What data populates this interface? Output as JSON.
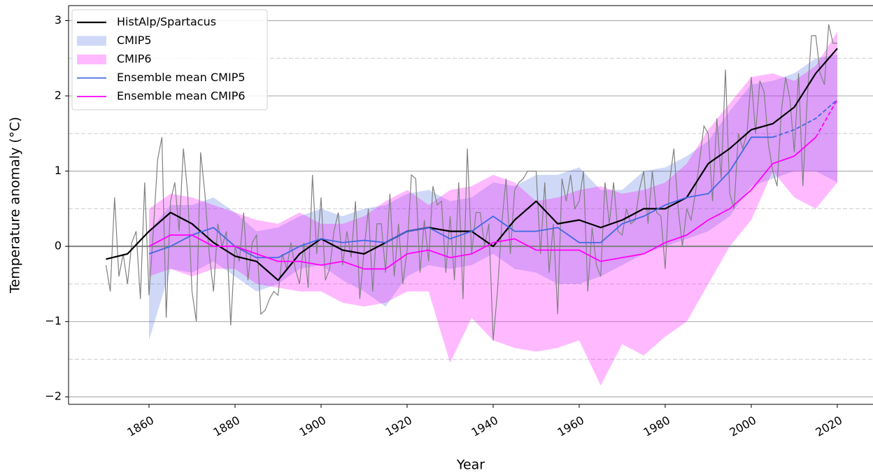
{
  "chart_data": {
    "type": "line",
    "x_label": "Year",
    "y_label": "Temperature anomaly (°C)",
    "xlim": [
      1841.3,
      2028.3
    ],
    "ylim": [
      -2.1,
      3.2
    ],
    "xticks": [
      1860,
      1880,
      1900,
      1920,
      1940,
      1960,
      1980,
      2000,
      2020
    ],
    "yticks": [
      {
        "value": -2,
        "label": "−2"
      },
      {
        "value": -1,
        "label": "−1"
      },
      0,
      1,
      2,
      3
    ],
    "minor_yticks": [
      -1.5,
      -0.5,
      0.5,
      1.5,
      2.5
    ],
    "grid": true,
    "zero_line": true,
    "legend": "upper left",
    "annual": {
      "color": "#808080",
      "x": [
        1850,
        1851,
        1852,
        1853,
        1854,
        1855,
        1856,
        1857,
        1858,
        1859,
        1860,
        1861,
        1862,
        1863,
        1864,
        1865,
        1866,
        1867,
        1868,
        1869,
        1870,
        1871,
        1872,
        1873,
        1874,
        1875,
        1876,
        1877,
        1878,
        1879,
        1880,
        1881,
        1882,
        1883,
        1884,
        1885,
        1886,
        1887,
        1888,
        1889,
        1890,
        1891,
        1892,
        1893,
        1894,
        1895,
        1896,
        1897,
        1898,
        1899,
        1900,
        1901,
        1902,
        1903,
        1904,
        1905,
        1906,
        1907,
        1908,
        1909,
        1910,
        1911,
        1912,
        1913,
        1914,
        1915,
        1916,
        1917,
        1918,
        1919,
        1920,
        1921,
        1922,
        1923,
        1924,
        1925,
        1926,
        1927,
        1928,
        1929,
        1930,
        1931,
        1932,
        1933,
        1934,
        1935,
        1936,
        1937,
        1938,
        1939,
        1940,
        1941,
        1942,
        1943,
        1944,
        1945,
        1946,
        1947,
        1948,
        1949,
        1950,
        1951,
        1952,
        1953,
        1954,
        1955,
        1956,
        1957,
        1958,
        1959,
        1960,
        1961,
        1962,
        1963,
        1964,
        1965,
        1966,
        1967,
        1968,
        1969,
        1970,
        1971,
        1972,
        1973,
        1974,
        1975,
        1976,
        1977,
        1978,
        1979,
        1980,
        1981,
        1982,
        1983,
        1984,
        1985,
        1986,
        1987,
        1988,
        1989,
        1990,
        1991,
        1992,
        1993,
        1994,
        1995,
        1996,
        1997,
        1998,
        1999,
        2000,
        2001,
        2002,
        2003,
        2004,
        2005,
        2006,
        2007,
        2008,
        2009,
        2010,
        2011,
        2012,
        2013,
        2014,
        2015,
        2016,
        2017,
        2018,
        2019,
        2020
      ],
      "values": [
        -0.25,
        -0.6,
        0.65,
        -0.4,
        -0.1,
        -0.5,
        0.05,
        0.2,
        -0.7,
        0.85,
        -0.65,
        0.2,
        1.15,
        1.45,
        -0.95,
        0.6,
        0.85,
        0.2,
        1.3,
        0.7,
        -0.6,
        -1.0,
        1.25,
        0.7,
        -0.1,
        -0.6,
        0.3,
        0.0,
        0.2,
        -1.05,
        0.0,
        -0.2,
        0.45,
        -0.45,
        0.05,
        0.15,
        -0.9,
        -0.85,
        -0.7,
        -0.6,
        -0.65,
        -0.1,
        -0.3,
        0.05,
        -0.3,
        -0.5,
        0.05,
        -0.55,
        0.95,
        -0.1,
        0.65,
        -0.45,
        -0.3,
        0.2,
        0.45,
        -0.25,
        0.2,
        -0.15,
        0.6,
        -0.7,
        -0.05,
        0.5,
        -0.6,
        0.3,
        0.3,
        -0.35,
        0.7,
        -0.4,
        0.3,
        -0.5,
        -0.05,
        0.95,
        0.9,
        -0.35,
        0.35,
        -0.2,
        0.8,
        0.55,
        0.6,
        -0.35,
        0.4,
        -0.45,
        0.85,
        -0.7,
        1.3,
        -0.1,
        0.45,
        0.45,
        0.0,
        0.3,
        -1.25,
        -0.6,
        0.3,
        0.9,
        -0.1,
        0.75,
        0.85,
        0.9,
        1.0,
        1.0,
        1.0,
        -0.1,
        0.85,
        -0.35,
        0.3,
        -0.9,
        0.9,
        0.6,
        0.95,
        0.5,
        0.6,
        1.0,
        -0.6,
        0.25,
        -0.25,
        -0.4,
        0.85,
        0.3,
        0.85,
        0.2,
        0.15,
        0.5,
        0.3,
        0.35,
        0.75,
        1.0,
        0.3,
        1.0,
        0.45,
        0.4,
        -0.3,
        0.85,
        1.3,
        0.5,
        0.0,
        0.5,
        0.35,
        0.7,
        1.15,
        1.6,
        1.5,
        0.6,
        1.7,
        0.9,
        2.35,
        0.7,
        0.5,
        1.5,
        1.3,
        1.5,
        2.25,
        1.5,
        2.2,
        2.05,
        1.35,
        1.0,
        0.8,
        1.8,
        2.25,
        1.95,
        1.25,
        2.3,
        0.8,
        1.95,
        2.8,
        2.8,
        2.3,
        2.15,
        2.95,
        2.7,
        2.7
      ]
    },
    "series": [
      {
        "name": "HistAlp/Spartacus",
        "kind": "line",
        "color": "#000000",
        "width": 2.2,
        "x": [
          1850,
          1855,
          1860,
          1865,
          1870,
          1875,
          1880,
          1885,
          1890,
          1895,
          1900,
          1905,
          1910,
          1915,
          1920,
          1925,
          1930,
          1935,
          1940,
          1945,
          1950,
          1955,
          1960,
          1965,
          1970,
          1975,
          1980,
          1985,
          1990,
          1995,
          2000,
          2005,
          2010,
          2015,
          2020
        ],
        "values": [
          -0.17,
          -0.1,
          0.2,
          0.45,
          0.3,
          0.05,
          -0.13,
          -0.2,
          -0.45,
          -0.1,
          0.1,
          -0.05,
          -0.1,
          0.05,
          0.2,
          0.25,
          0.2,
          0.2,
          0.0,
          0.35,
          0.6,
          0.3,
          0.35,
          0.25,
          0.35,
          0.5,
          0.5,
          0.65,
          1.1,
          1.3,
          1.55,
          1.63,
          1.85,
          2.3,
          2.63
        ]
      },
      {
        "name": "CMIP5",
        "kind": "band",
        "color": "#4169e1",
        "opacity": 0.25,
        "x": [
          1860,
          1865,
          1870,
          1875,
          1880,
          1885,
          1890,
          1895,
          1900,
          1905,
          1910,
          1915,
          1920,
          1925,
          1930,
          1935,
          1940,
          1945,
          1950,
          1955,
          1960,
          1965,
          1970,
          1975,
          1980,
          1985,
          1990,
          1995,
          2000,
          2005,
          2010,
          2015,
          2020
        ],
        "lower": [
          -1.25,
          -0.3,
          -0.35,
          -0.2,
          -0.4,
          -0.6,
          -0.5,
          -0.3,
          -0.25,
          -0.45,
          -0.6,
          -0.8,
          -0.4,
          -0.25,
          -0.3,
          -0.25,
          -0.1,
          -0.3,
          -0.35,
          -0.5,
          -0.5,
          -0.4,
          -0.25,
          -0.1,
          0.0,
          0.1,
          0.2,
          0.4,
          0.8,
          0.9,
          1.0,
          1.0,
          0.85
        ],
        "upper": [
          0.2,
          0.55,
          0.55,
          0.65,
          0.45,
          0.2,
          0.25,
          0.4,
          0.5,
          0.4,
          0.5,
          0.55,
          0.7,
          0.75,
          0.6,
          0.65,
          0.85,
          0.8,
          0.95,
          0.95,
          1.05,
          0.75,
          0.75,
          1.0,
          1.05,
          1.2,
          1.4,
          1.8,
          2.15,
          2.2,
          2.3,
          2.5,
          2.55
        ]
      },
      {
        "name": "CMIP6",
        "kind": "band",
        "color": "#ff00ff",
        "opacity": 0.27,
        "x": [
          1860,
          1865,
          1870,
          1875,
          1880,
          1885,
          1890,
          1895,
          1900,
          1905,
          1910,
          1915,
          1920,
          1925,
          1930,
          1935,
          1940,
          1945,
          1950,
          1955,
          1960,
          1965,
          1970,
          1975,
          1980,
          1985,
          1990,
          1995,
          2000,
          2005,
          2010,
          2015,
          2020
        ],
        "lower": [
          -0.4,
          -0.3,
          -0.4,
          -0.3,
          -0.3,
          -0.5,
          -0.55,
          -0.6,
          -0.6,
          -0.75,
          -0.8,
          -0.75,
          -0.6,
          -0.6,
          -1.55,
          -0.95,
          -1.25,
          -1.35,
          -1.4,
          -1.35,
          -1.25,
          -1.85,
          -1.3,
          -1.45,
          -1.2,
          -1.0,
          -0.5,
          0.0,
          0.35,
          1.0,
          0.65,
          0.5,
          0.85
        ],
        "upper": [
          0.5,
          0.7,
          0.65,
          0.55,
          0.45,
          0.35,
          0.3,
          0.45,
          0.3,
          0.3,
          0.4,
          0.6,
          0.75,
          0.55,
          0.75,
          0.8,
          0.95,
          0.85,
          0.6,
          0.65,
          0.75,
          0.8,
          0.7,
          0.75,
          0.85,
          1.1,
          1.55,
          1.9,
          2.25,
          2.3,
          2.2,
          2.4,
          2.85
        ]
      },
      {
        "name": "Ensemble mean CMIP5",
        "kind": "line",
        "color": "#4169e1",
        "width": 1.8,
        "dashed_from": 2005,
        "x": [
          1860,
          1865,
          1870,
          1875,
          1880,
          1885,
          1890,
          1895,
          1900,
          1905,
          1910,
          1915,
          1920,
          1925,
          1930,
          1935,
          1940,
          1945,
          1950,
          1955,
          1960,
          1965,
          1970,
          1975,
          1980,
          1985,
          1990,
          1995,
          2000,
          2005,
          2010,
          2015,
          2020
        ],
        "values": [
          -0.1,
          0.0,
          0.15,
          0.25,
          0.0,
          -0.15,
          -0.15,
          0.0,
          0.1,
          0.05,
          0.08,
          0.05,
          0.2,
          0.25,
          0.1,
          0.2,
          0.4,
          0.2,
          0.2,
          0.25,
          0.05,
          0.05,
          0.3,
          0.4,
          0.55,
          0.65,
          0.7,
          1.0,
          1.45,
          1.45,
          1.55,
          1.7,
          1.95
        ]
      },
      {
        "name": "Ensemble mean CMIP6",
        "kind": "line",
        "color": "#ff00ff",
        "width": 1.8,
        "dashed_from": 2015,
        "x": [
          1860,
          1865,
          1870,
          1875,
          1880,
          1885,
          1890,
          1895,
          1900,
          1905,
          1910,
          1915,
          1920,
          1925,
          1930,
          1935,
          1940,
          1945,
          1950,
          1955,
          1960,
          1965,
          1970,
          1975,
          1980,
          1985,
          1990,
          1995,
          2000,
          2005,
          2010,
          2015,
          2020
        ],
        "values": [
          0.0,
          0.15,
          0.15,
          0.0,
          0.0,
          -0.1,
          -0.2,
          -0.2,
          -0.25,
          -0.2,
          -0.3,
          -0.3,
          -0.1,
          -0.05,
          -0.15,
          -0.1,
          0.05,
          0.1,
          -0.05,
          -0.05,
          -0.05,
          -0.2,
          -0.15,
          -0.1,
          0.05,
          0.15,
          0.35,
          0.5,
          0.75,
          1.1,
          1.2,
          1.45,
          1.95
        ]
      }
    ]
  }
}
